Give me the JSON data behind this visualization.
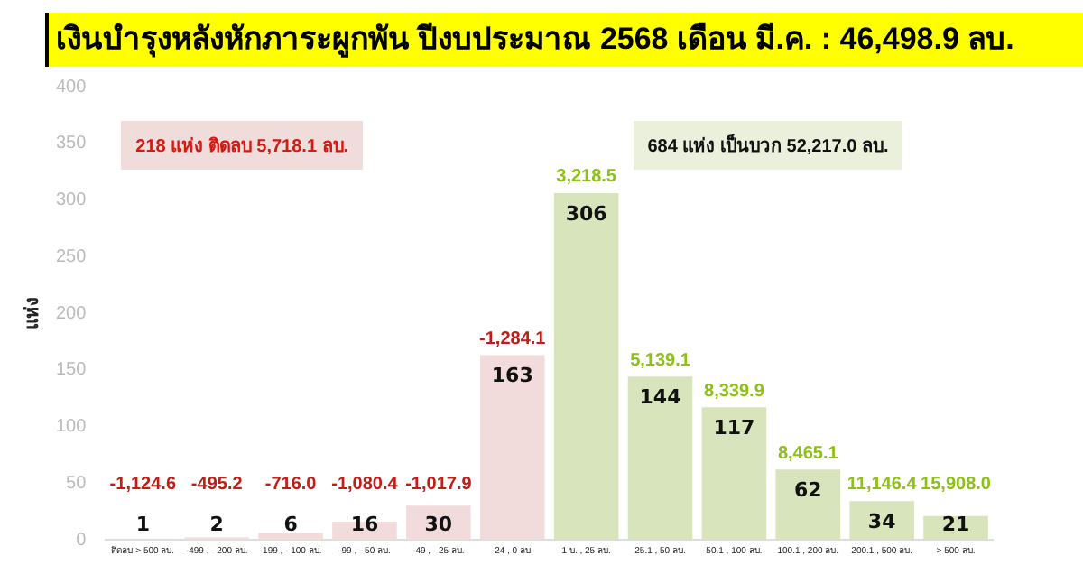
{
  "chart_data": {
    "type": "bar",
    "title": "เงินบำรุงหลังหักภาระผูกพัน ปีงบประมาณ 2568 เดือน มี.ค. : 46,498.9 ลบ.",
    "ylabel": "แห่ง",
    "categories": [
      "ติดลบ > 500 ลบ.",
      "-499 , - 200 ลบ.",
      "-199 , - 100 ลบ.",
      "-99 , - 50 ลบ.",
      "-49 , - 25 ลบ.",
      "-24 , 0 ลบ.",
      "1 บ. , 25 ลบ.",
      "25.1 , 50 ลบ.",
      "50.1 , 100 ลบ.",
      "100.1 , 200 ลบ.",
      "200.1 , 500 ลบ.",
      "> 500 ลบ."
    ],
    "values": [
      1,
      2,
      6,
      16,
      30,
      163,
      306,
      144,
      117,
      62,
      34,
      21
    ],
    "colors": [
      "#f2dcdb",
      "#f2dcdb",
      "#f2dcdb",
      "#f2dcdb",
      "#f2dcdb",
      "#f2dcdb",
      "#d8e4bc",
      "#d8e4bc",
      "#d8e4bc",
      "#d8e4bc",
      "#d8e4bc",
      "#d8e4bc"
    ],
    "data_labels": true,
    "ylim": [
      0,
      400
    ],
    "yticks": [
      0,
      50,
      100,
      150,
      200,
      250,
      300,
      350,
      400
    ],
    "grid": false,
    "legend": false,
    "annotations": [
      "218 แห่ง  ติดลบ 5,718.1 ลบ.",
      "684 แห่ง  เป็นบวก 52,217.0 ลบ.",
      {
        "text": "-1,124.6",
        "x": "ติดลบ > 500 ลบ.",
        "y": 1
      },
      {
        "text": "-495.2",
        "x": "-499 , - 200 ลบ.",
        "y": 2
      },
      {
        "text": "-716.0",
        "x": "-199 , - 100 ลบ.",
        "y": 6
      },
      {
        "text": "-1,080.4",
        "x": "-99 , - 50 ลบ.",
        "y": 16
      },
      {
        "text": "-1,017.9",
        "x": "-49 , - 25 ลบ.",
        "y": 30
      },
      {
        "text": "-1,284.1",
        "x": "-24 , 0 ลบ.",
        "y": 163
      },
      {
        "text": "3,218.5",
        "x": "1 บ. , 25 ลบ.",
        "y": 306
      },
      {
        "text": "5,139.1",
        "x": "25.1 , 50 ลบ.",
        "y": 144
      },
      {
        "text": "8,339.9",
        "x": "50.1 , 100 ลบ.",
        "y": 117
      },
      {
        "text": "8,465.1",
        "x": "100.1 , 200 ลบ.",
        "y": 62
      },
      {
        "text": "11,146.4",
        "x": "200.1 , 500 ลบ.",
        "y": 34
      },
      {
        "text": "15,908.0",
        "x": "> 500 ลบ.",
        "y": 21
      }
    ]
  }
}
